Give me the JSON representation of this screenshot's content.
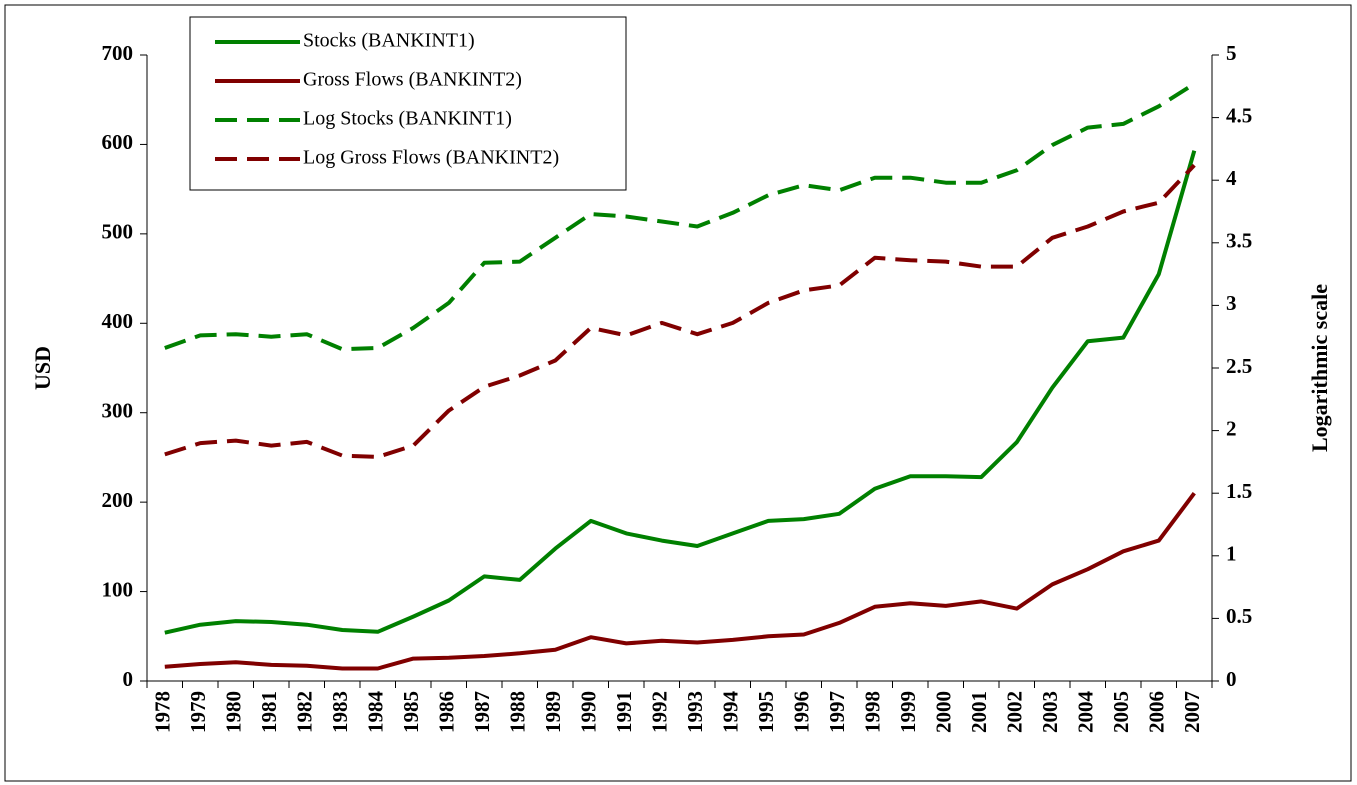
{
  "chart_data": {
    "type": "line",
    "categories": [
      "1978",
      "1979",
      "1980",
      "1981",
      "1982",
      "1983",
      "1984",
      "1985",
      "1986",
      "1987",
      "1988",
      "1989",
      "1990",
      "1991",
      "1992",
      "1993",
      "1994",
      "1995",
      "1996",
      "1997",
      "1998",
      "1999",
      "2000",
      "2001",
      "2002",
      "2003",
      "2004",
      "2005",
      "2006",
      "2007"
    ],
    "y_label": "USD",
    "y2_label": "Logarithmic scale",
    "ylim": [
      0,
      700
    ],
    "yticks": [
      0,
      100,
      200,
      300,
      400,
      500,
      600,
      700
    ],
    "y2lim": [
      0,
      5
    ],
    "y2ticks": [
      0,
      0.5,
      1,
      1.5,
      2,
      2.5,
      3,
      3.5,
      4,
      4.5,
      5
    ],
    "legend": "upper left",
    "series": [
      {
        "name": "Stocks (BANKINT1)",
        "color": "#008000",
        "style": "solid",
        "axis": "y",
        "values": [
          54,
          63,
          67,
          66,
          63,
          57,
          55,
          72,
          90,
          117,
          113,
          148,
          179,
          165,
          157,
          151,
          165,
          179,
          181,
          187,
          215,
          229,
          229,
          228,
          267,
          328,
          380,
          384,
          455,
          593
        ]
      },
      {
        "name": "Gross Flows (BANKINT2)",
        "color": "#800000",
        "style": "solid",
        "axis": "y",
        "values": [
          16,
          19,
          21,
          18,
          17,
          14,
          14,
          25,
          26,
          28,
          31,
          35,
          49,
          42,
          45,
          43,
          46,
          50,
          52,
          65,
          83,
          87,
          84,
          89,
          81,
          108,
          125,
          145,
          157,
          210
        ]
      },
      {
        "name": "Log Stocks (BANKINT1)",
        "color": "#008000",
        "style": "dashed",
        "axis": "y2",
        "values": [
          2.66,
          2.76,
          2.77,
          2.75,
          2.77,
          2.65,
          2.66,
          2.82,
          3.02,
          3.34,
          3.35,
          3.54,
          3.73,
          3.71,
          3.67,
          3.63,
          3.74,
          3.88,
          3.96,
          3.92,
          4.02,
          4.02,
          3.98,
          3.98,
          4.08,
          4.28,
          4.42,
          4.45,
          4.59,
          4.77
        ]
      },
      {
        "name": "Log Gross Flows (BANKINT2)",
        "color": "#800000",
        "style": "dashed",
        "axis": "y2",
        "values": [
          1.81,
          1.9,
          1.92,
          1.88,
          1.91,
          1.8,
          1.79,
          1.88,
          2.16,
          2.35,
          2.44,
          2.56,
          2.82,
          2.76,
          2.86,
          2.77,
          2.86,
          3.02,
          3.12,
          3.16,
          3.38,
          3.36,
          3.35,
          3.31,
          3.31,
          3.54,
          3.63,
          3.75,
          3.82,
          4.12
        ]
      }
    ]
  }
}
